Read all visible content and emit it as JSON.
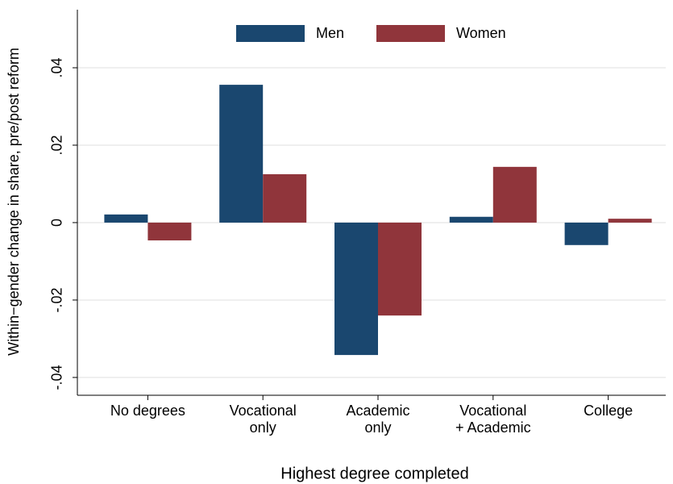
{
  "chart_data": {
    "type": "bar",
    "xlabel": "Highest degree completed",
    "ylabel": "Within−gender change in share, pre/post reform",
    "categories": [
      [
        "No degrees"
      ],
      [
        "Vocational",
        "only"
      ],
      [
        "Academic",
        "only"
      ],
      [
        "Vocational",
        "+ Academic"
      ],
      [
        "College"
      ]
    ],
    "series": [
      {
        "name": "Men",
        "color": "#1a476f",
        "values": [
          0.0021,
          0.0356,
          -0.0342,
          0.0015,
          -0.0058
        ]
      },
      {
        "name": "Women",
        "color": "#90353b",
        "values": [
          -0.0046,
          0.0125,
          -0.024,
          0.0144,
          0.001
        ]
      }
    ],
    "ylim": [
      -0.0446,
      0.055
    ],
    "yticks": [
      {
        "value": -0.04,
        "label": "-.04"
      },
      {
        "value": -0.02,
        "label": "-.02"
      },
      0,
      {
        "value": 0.02,
        "label": ".02"
      },
      {
        "value": 0.04,
        "label": ".04"
      }
    ],
    "grid": true,
    "legend": "top"
  }
}
